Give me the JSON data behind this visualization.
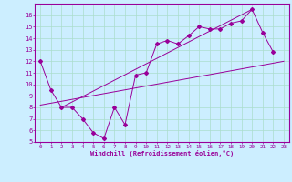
{
  "bg_color": "#cceeff",
  "line_color": "#990099",
  "grid_color": "#aaddcc",
  "xlabel": "Windchill (Refroidissement éolien,°C)",
  "xlim": [
    -0.5,
    23.5
  ],
  "ylim": [
    5,
    17
  ],
  "yticks": [
    5,
    6,
    7,
    8,
    9,
    10,
    11,
    12,
    13,
    14,
    15,
    16
  ],
  "xticks": [
    0,
    1,
    2,
    3,
    4,
    5,
    6,
    7,
    8,
    9,
    10,
    11,
    12,
    13,
    14,
    15,
    16,
    17,
    18,
    19,
    20,
    21,
    22,
    23
  ],
  "scatter_x": [
    0,
    1,
    2,
    3,
    4,
    5,
    6,
    7,
    8,
    9,
    10,
    11,
    12,
    13,
    14,
    15,
    16,
    17,
    18,
    19,
    20,
    21,
    22
  ],
  "scatter_y": [
    12.0,
    9.5,
    8.0,
    8.0,
    7.0,
    5.8,
    5.3,
    8.0,
    6.5,
    10.8,
    11.0,
    13.5,
    13.8,
    13.5,
    14.2,
    15.0,
    14.8,
    14.8,
    15.3,
    15.5,
    16.5,
    14.5,
    12.8
  ],
  "trend1_x": [
    0,
    23
  ],
  "trend1_y": [
    8.2,
    12.0
  ],
  "trend2_x": [
    2,
    20
  ],
  "trend2_y": [
    8.0,
    16.5
  ],
  "xlabel_fontsize": 5.0,
  "tick_fontsize_x": 4.2,
  "tick_fontsize_y": 5.0,
  "marker_size": 2.0,
  "line_width": 0.7
}
